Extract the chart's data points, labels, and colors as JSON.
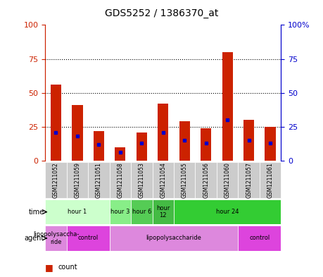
{
  "title": "GDS5252 / 1386370_at",
  "samples": [
    "GSM1211052",
    "GSM1211059",
    "GSM1211051",
    "GSM1211058",
    "GSM1211053",
    "GSM1211054",
    "GSM1211055",
    "GSM1211056",
    "GSM1211060",
    "GSM1211057",
    "GSM1211061"
  ],
  "counts": [
    56,
    41,
    22,
    10,
    21,
    42,
    29,
    24,
    80,
    30,
    25
  ],
  "percentiles": [
    21,
    18,
    12,
    6,
    13,
    21,
    15,
    13,
    30,
    15,
    13
  ],
  "ylim": [
    0,
    100
  ],
  "y_ticks": [
    0,
    25,
    50,
    75,
    100
  ],
  "bar_color": "#cc2200",
  "percentile_color": "#0000cc",
  "bar_width": 0.5,
  "time_groups": [
    {
      "label": "hour 1",
      "start": 0,
      "end": 3,
      "color": "#ccffcc"
    },
    {
      "label": "hour 3",
      "start": 3,
      "end": 4,
      "color": "#88ee88"
    },
    {
      "label": "hour 6",
      "start": 4,
      "end": 5,
      "color": "#55cc55"
    },
    {
      "label": "hour\n12",
      "start": 5,
      "end": 6,
      "color": "#44bb44"
    },
    {
      "label": "hour 24",
      "start": 6,
      "end": 11,
      "color": "#33cc33"
    }
  ],
  "agent_groups": [
    {
      "label": "lipopolysaccha-\nride",
      "start": 0,
      "end": 1,
      "color": "#dd88dd"
    },
    {
      "label": "control",
      "start": 1,
      "end": 3,
      "color": "#dd44dd"
    },
    {
      "label": "lipopolysaccharide",
      "start": 3,
      "end": 9,
      "color": "#dd88dd"
    },
    {
      "label": "control",
      "start": 9,
      "end": 11,
      "color": "#dd44dd"
    }
  ],
  "background_color": "#ffffff",
  "left_axis_color": "#cc2200",
  "right_axis_color": "#0000cc"
}
